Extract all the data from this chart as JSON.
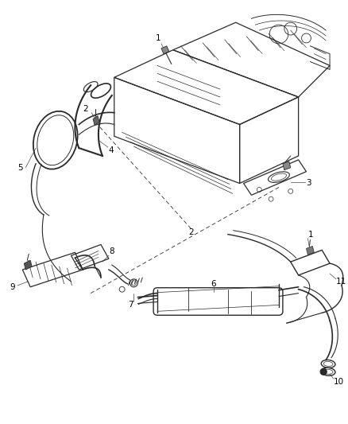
{
  "background_color": "#ffffff",
  "line_color": "#2a2a2a",
  "label_color": "#000000",
  "label_fontsize": 7.5,
  "fig_width": 4.38,
  "fig_height": 5.33,
  "dpi": 100
}
